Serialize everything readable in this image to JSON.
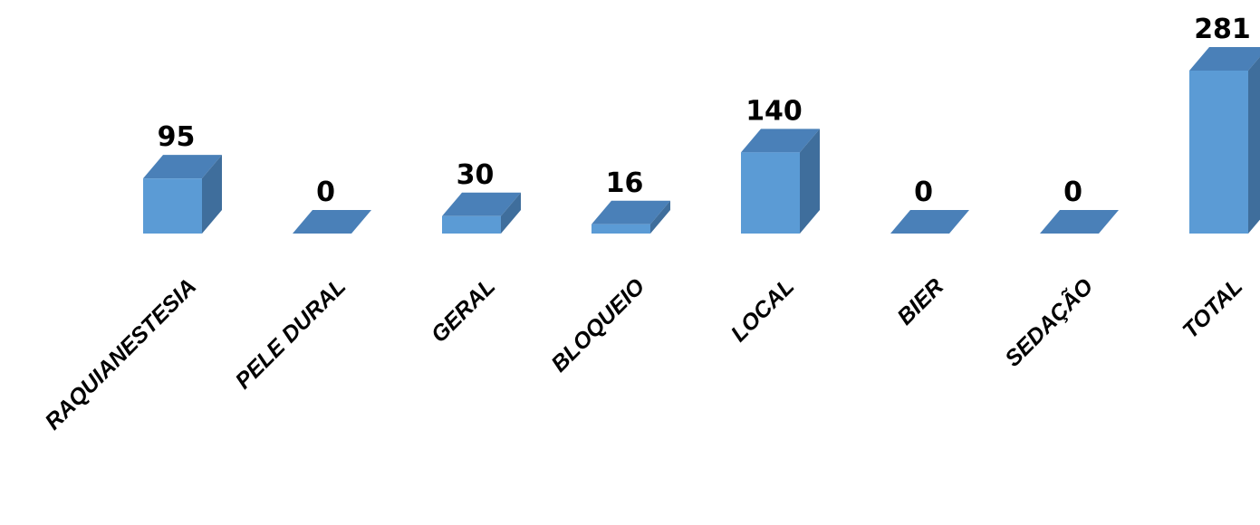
{
  "chart_data": {
    "type": "bar",
    "style": "3d-column",
    "title": "",
    "xlabel": "",
    "ylabel": "",
    "categories": [
      "RAQUIANESTESIA",
      "PELE DURAL",
      "GERAL",
      "BLOQUEIO",
      "LOCAL",
      "BIER",
      "SEDAÇÃO",
      "TOTAL"
    ],
    "values": [
      95,
      0,
      30,
      16,
      140,
      0,
      0,
      281
    ],
    "data_labels": [
      "95",
      "0",
      "30",
      "16",
      "140",
      "0",
      "0",
      "281"
    ],
    "ylim": [
      0,
      281
    ],
    "grid": false,
    "legend": "none",
    "colors": {
      "front": "#5B9BD5",
      "side": "#3F6E9C",
      "top": "#4A80B8"
    }
  }
}
